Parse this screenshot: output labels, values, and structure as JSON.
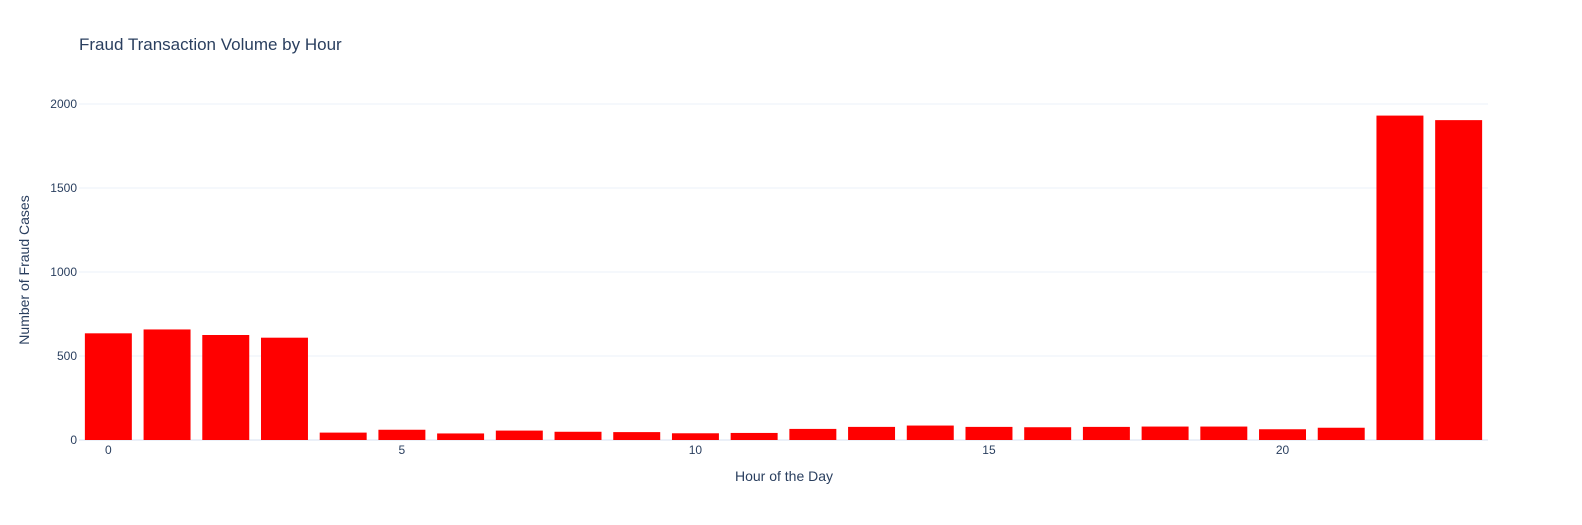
{
  "colors": {
    "bar": "#ff0000",
    "text": "#2a3f5f",
    "grid": "#ebf0f8",
    "background": "#ffffff"
  },
  "chart_data": {
    "type": "bar",
    "title": "Fraud Transaction Volume by Hour",
    "xlabel": "Hour of the Day",
    "ylabel": "Number of Fraud Cases",
    "x": [
      0,
      1,
      2,
      3,
      4,
      5,
      6,
      7,
      8,
      9,
      10,
      11,
      12,
      13,
      14,
      15,
      16,
      17,
      18,
      19,
      20,
      21,
      22,
      23
    ],
    "values": [
      635,
      658,
      625,
      609,
      44,
      61,
      39,
      56,
      49,
      47,
      40,
      42,
      66,
      78,
      86,
      78,
      76,
      78,
      80,
      80,
      64,
      73,
      1931,
      1904
    ],
    "xlim": [
      -0.5,
      23.5
    ],
    "ylim": [
      0,
      2000
    ],
    "xticks": [
      0,
      5,
      10,
      15,
      20
    ],
    "xtick_labels": [
      "0",
      "5",
      "10",
      "15",
      "20"
    ],
    "yticks": [
      0,
      500,
      1000,
      1500,
      2000
    ],
    "ytick_labels": [
      "0",
      "500",
      "1000",
      "1500",
      "2000"
    ],
    "grid": true,
    "legend": "none"
  }
}
